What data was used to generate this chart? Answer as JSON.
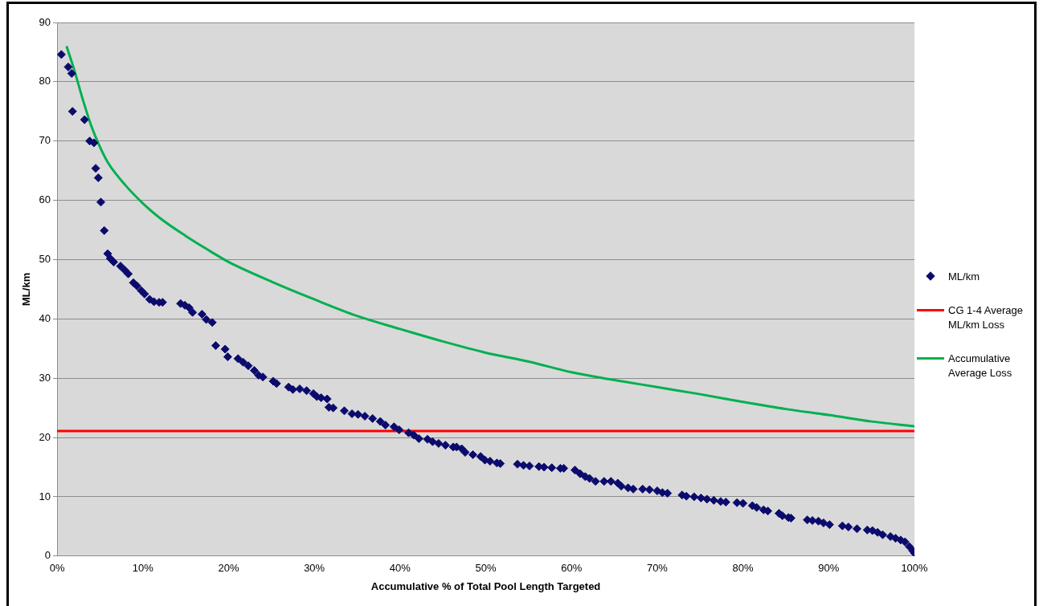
{
  "chart_data": {
    "type": "scatter",
    "xlabel": "Accumulative % of Total Pool Length Targeted",
    "ylabel": "ML/km",
    "xlim": [
      0,
      100
    ],
    "xticks": [
      {
        "value": 0,
        "label": "0%"
      },
      {
        "value": 10,
        "label": "10%"
      },
      {
        "value": 20,
        "label": "20%"
      },
      {
        "value": 30,
        "label": "30%"
      },
      {
        "value": 40,
        "label": "40%"
      },
      {
        "value": 50,
        "label": "50%"
      },
      {
        "value": 60,
        "label": "60%"
      },
      {
        "value": 70,
        "label": "70%"
      },
      {
        "value": 80,
        "label": "80%"
      },
      {
        "value": 90,
        "label": "90%"
      },
      {
        "value": 100,
        "label": "100%"
      }
    ],
    "ylim": [
      0,
      90
    ],
    "yticks": [
      0,
      10,
      20,
      30,
      40,
      50,
      60,
      70,
      80,
      90
    ],
    "grid": "y",
    "legend": "right",
    "marker": "diamond",
    "series": [
      {
        "name": "ML/km",
        "color": "#0b0b6e",
        "x": [
          0.5,
          1.3,
          1.7,
          1.8,
          3.2,
          3.8,
          4.3,
          4.5,
          4.8,
          5.1,
          5.5,
          5.9,
          6.2,
          6.6,
          7.4,
          7.9,
          8.3,
          8.9,
          9.3,
          9.8,
          10.2,
          10.8,
          11.3,
          11.9,
          12.3,
          14.4,
          14.9,
          15.4,
          15.8,
          16.9,
          17.4,
          18.1,
          18.5,
          19.6,
          19.9,
          21.1,
          21.7,
          22.3,
          23.0,
          23.5,
          24.0,
          25.2,
          25.6,
          27.0,
          27.5,
          28.3,
          29.1,
          29.9,
          30.3,
          30.8,
          31.5,
          31.7,
          32.2,
          33.5,
          34.4,
          35.1,
          35.9,
          36.8,
          37.7,
          38.3,
          39.3,
          39.9,
          41.0,
          41.6,
          42.2,
          43.2,
          43.8,
          44.5,
          45.3,
          46.2,
          46.6,
          47.2,
          47.6,
          48.5,
          49.4,
          49.9,
          50.5,
          51.3,
          51.7,
          53.7,
          54.4,
          55.1,
          56.2,
          56.8,
          57.7,
          58.7,
          59.1,
          60.4,
          61.0,
          61.6,
          62.1,
          62.8,
          63.8,
          64.6,
          65.4,
          65.8,
          66.6,
          67.2,
          68.3,
          69.1,
          70.0,
          70.6,
          71.2,
          72.9,
          73.4,
          74.3,
          75.1,
          75.8,
          76.6,
          77.4,
          78.0,
          79.3,
          80.0,
          81.1,
          81.6,
          82.4,
          82.9,
          84.2,
          84.6,
          85.3,
          85.6,
          87.5,
          88.1,
          88.8,
          89.4,
          90.1,
          91.6,
          92.3,
          93.3,
          94.5,
          95.1,
          95.7,
          96.3,
          97.2,
          97.8,
          98.4,
          98.9,
          99.4,
          99.8,
          100
        ],
        "values": [
          84.6,
          82.5,
          81.4,
          75,
          73.6,
          70,
          69.7,
          65.4,
          63.8,
          59.7,
          54.9,
          51,
          50.2,
          49.6,
          48.9,
          48.2,
          47.6,
          46.1,
          45.6,
          44.8,
          44.2,
          43.3,
          42.9,
          42.8,
          42.8,
          42.6,
          42.3,
          41.9,
          41.1,
          40.8,
          39.9,
          39.4,
          35.5,
          34.9,
          33.6,
          33.3,
          32.7,
          32.1,
          31.3,
          30.5,
          30.2,
          29.5,
          29.1,
          28.5,
          28.1,
          28.2,
          27.9,
          27.4,
          26.9,
          26.7,
          26.5,
          25.1,
          25.0,
          24.5,
          24.0,
          23.9,
          23.6,
          23.2,
          22.7,
          22.1,
          21.8,
          21.3,
          20.8,
          20.4,
          19.8,
          19.7,
          19.3,
          19.0,
          18.7,
          18.4,
          18.4,
          18.1,
          17.5,
          17.1,
          16.8,
          16.2,
          16.0,
          15.7,
          15.6,
          15.5,
          15.3,
          15.2,
          15.1,
          15.0,
          14.9,
          14.8,
          14.8,
          14.5,
          13.9,
          13.4,
          13.1,
          12.6,
          12.6,
          12.6,
          12.3,
          11.8,
          11.5,
          11.3,
          11.3,
          11.2,
          11.0,
          10.7,
          10.6,
          10.3,
          10.1,
          10.0,
          9.8,
          9.6,
          9.4,
          9.2,
          9.1,
          9.0,
          8.9,
          8.5,
          8.2,
          7.8,
          7.6,
          7.2,
          6.8,
          6.5,
          6.4,
          6.1,
          6.0,
          5.9,
          5.6,
          5.3,
          5.1,
          4.9,
          4.6,
          4.4,
          4.3,
          4.0,
          3.6,
          3.3,
          3.0,
          2.7,
          2.4,
          1.6,
          0.9,
          0.5
        ]
      },
      {
        "name": "Accumulative Average Loss",
        "type": "line",
        "marker": "none",
        "color": "#00b050",
        "x": [
          1.1,
          2,
          3,
          4,
          5,
          6,
          8,
          10,
          12,
          15,
          18,
          20,
          25,
          30,
          35,
          40,
          45,
          50,
          55,
          60,
          65,
          70,
          75,
          80,
          85,
          90,
          95,
          100
        ],
        "values": [
          86,
          82,
          77,
          72.5,
          69,
          66.2,
          62.5,
          59.5,
          57,
          54,
          51.3,
          49.6,
          46.3,
          43.3,
          40.5,
          38.3,
          36.2,
          34.3,
          32.8,
          31,
          29.7,
          28.5,
          27.3,
          26,
          24.8,
          23.8,
          22.7,
          21.9
        ]
      }
    ],
    "ref_lines": [
      {
        "axis": "y",
        "value": 21.1,
        "label": "CG 1-4 Average ML/km Loss",
        "color": "#ff0000"
      }
    ]
  }
}
